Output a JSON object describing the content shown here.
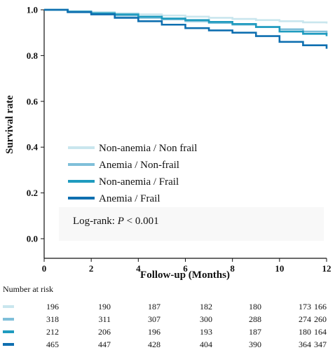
{
  "chart_data": {
    "type": "line",
    "title": "",
    "xlabel": "Follow-up (Months)",
    "ylabel": "Survival rate",
    "xlim": [
      0,
      12
    ],
    "ylim": [
      0.0,
      1.0
    ],
    "xticks": [
      0,
      2,
      4,
      6,
      8,
      10,
      12
    ],
    "yticks": [
      "0.0",
      "0.2",
      "0.4",
      "0.6",
      "0.8",
      "1.0"
    ],
    "grid": false,
    "legend_position": "center-left",
    "annotation": {
      "prefix": "Log-rank: ",
      "italic": "P",
      "suffix": " < 0.001"
    },
    "series": [
      {
        "name": "Non-anemia / Non frail",
        "color": "#c9e6ee",
        "x": [
          0,
          1,
          2,
          3,
          4,
          5,
          6,
          7,
          8,
          9,
          10,
          11,
          12
        ],
        "y": [
          1.0,
          0.995,
          0.99,
          0.985,
          0.98,
          0.975,
          0.97,
          0.965,
          0.96,
          0.955,
          0.95,
          0.945,
          0.94
        ]
      },
      {
        "name": "Anemia / Non-frail",
        "color": "#7fbfd9",
        "x": [
          0,
          1,
          2,
          3,
          4,
          5,
          6,
          7,
          8,
          9,
          10,
          11,
          12
        ],
        "y": [
          1.0,
          0.99,
          0.985,
          0.975,
          0.965,
          0.958,
          0.95,
          0.943,
          0.935,
          0.925,
          0.915,
          0.905,
          0.895
        ]
      },
      {
        "name": "Non-anemia / Frail",
        "color": "#1f9bbf",
        "x": [
          0,
          1,
          2,
          3,
          4,
          5,
          6,
          7,
          8,
          9,
          10,
          11,
          12
        ],
        "y": [
          1.0,
          0.992,
          0.985,
          0.98,
          0.97,
          0.962,
          0.955,
          0.947,
          0.938,
          0.925,
          0.905,
          0.895,
          0.885
        ]
      },
      {
        "name": "Anemia / Frail",
        "color": "#0f6fb0",
        "x": [
          0,
          1,
          2,
          3,
          4,
          5,
          6,
          7,
          8,
          9,
          10,
          11,
          12
        ],
        "y": [
          1.0,
          0.99,
          0.98,
          0.965,
          0.95,
          0.935,
          0.92,
          0.91,
          0.9,
          0.885,
          0.86,
          0.845,
          0.83
        ]
      }
    ]
  },
  "risk_table": {
    "title": "Number at risk",
    "times": [
      0,
      2,
      4,
      6,
      8,
      10,
      12
    ],
    "rows": [
      {
        "color": "#c9e6ee",
        "values": [
          "196",
          "190",
          "187",
          "182",
          "180",
          "173",
          "166"
        ]
      },
      {
        "color": "#7fbfd9",
        "values": [
          "318",
          "311",
          "307",
          "300",
          "288",
          "274",
          "260"
        ]
      },
      {
        "color": "#1f9bbf",
        "values": [
          "212",
          "206",
          "196",
          "193",
          "187",
          "180",
          "164"
        ]
      },
      {
        "color": "#0f6fb0",
        "values": [
          "465",
          "447",
          "428",
          "404",
          "390",
          "364",
          "347"
        ]
      }
    ]
  }
}
